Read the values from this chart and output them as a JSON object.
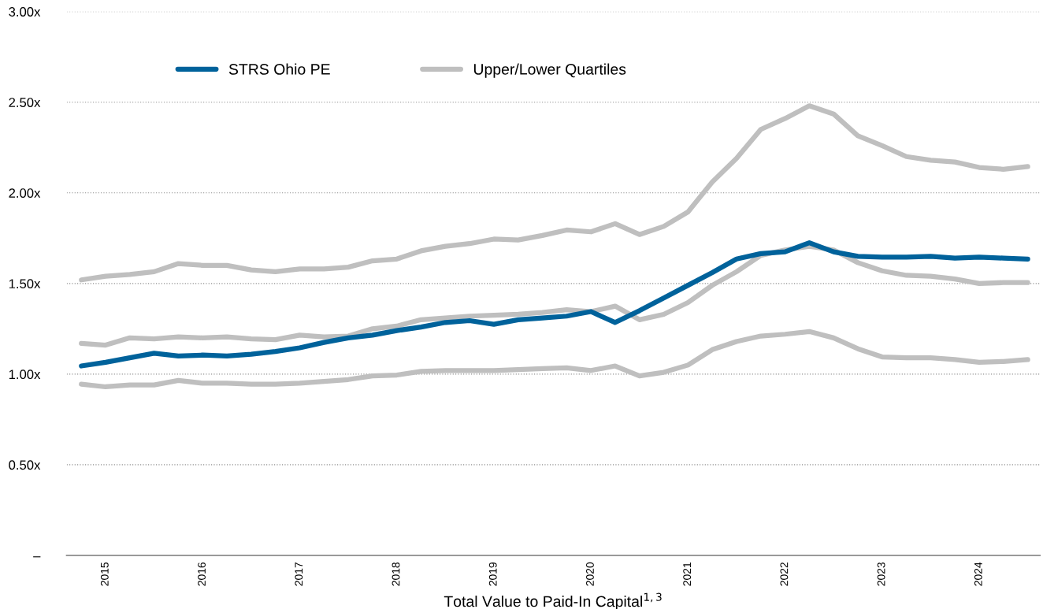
{
  "chart_data": {
    "type": "line",
    "xlabel": "Total Value to Paid-In Capital$^{1,3}$",
    "categories": [
      null,
      "2015",
      null,
      null,
      null,
      "2016",
      null,
      null,
      null,
      "2017",
      null,
      null,
      null,
      "2018",
      null,
      null,
      null,
      "2019",
      null,
      null,
      null,
      "2020",
      null,
      null,
      null,
      "2021",
      null,
      null,
      null,
      "2022",
      null,
      null,
      null,
      "2023",
      null,
      null,
      null,
      "2024",
      null,
      null
    ],
    "series": [
      {
        "name": "Upper/Lower Quartiles",
        "color": "#bfbfbf",
        "values": [
          1.52,
          1.54,
          1.55,
          1.565,
          1.61,
          1.6,
          1.6,
          1.575,
          1.565,
          1.58,
          1.58,
          1.59,
          1.625,
          1.635,
          1.68,
          1.705,
          1.72,
          1.745,
          1.74,
          1.765,
          1.795,
          1.785,
          1.83,
          1.77,
          1.815,
          1.895,
          2.06,
          2.19,
          2.35,
          2.41,
          2.48,
          2.435,
          2.315,
          2.26,
          2.2,
          2.18,
          2.17,
          2.14,
          2.13,
          2.145
        ]
      },
      {
        "color": "#bfbfbf",
        "values": [
          1.17,
          1.16,
          1.2,
          1.195,
          1.205,
          1.2,
          1.205,
          1.195,
          1.19,
          1.215,
          1.205,
          1.21,
          1.25,
          1.265,
          1.3,
          1.31,
          1.32,
          1.325,
          1.33,
          1.34,
          1.355,
          1.345,
          1.375,
          1.3,
          1.33,
          1.395,
          1.49,
          1.565,
          1.655,
          1.685,
          1.705,
          1.685,
          1.615,
          1.57,
          1.545,
          1.54,
          1.525,
          1.5,
          1.505,
          1.505
        ]
      },
      {
        "color": "#bfbfbf",
        "values": [
          0.945,
          0.93,
          0.94,
          0.94,
          0.965,
          0.95,
          0.95,
          0.945,
          0.945,
          0.95,
          0.96,
          0.97,
          0.99,
          0.995,
          1.015,
          1.02,
          1.02,
          1.02,
          1.025,
          1.03,
          1.035,
          1.02,
          1.045,
          0.99,
          1.01,
          1.05,
          1.135,
          1.18,
          1.21,
          1.22,
          1.235,
          1.2,
          1.14,
          1.095,
          1.09,
          1.09,
          1.08,
          1.065,
          1.07,
          1.08
        ]
      },
      {
        "name": "STRS Ohio PE",
        "color": "#00629b",
        "values": [
          1.045,
          1.065,
          1.09,
          1.115,
          1.1,
          1.105,
          1.1,
          1.11,
          1.125,
          1.145,
          1.175,
          1.2,
          1.215,
          1.24,
          1.26,
          1.285,
          1.295,
          1.275,
          1.3,
          1.31,
          1.32,
          1.345,
          1.285,
          1.35,
          1.42,
          1.49,
          1.56,
          1.635,
          1.665,
          1.675,
          1.725,
          1.675,
          1.65,
          1.645,
          1.645,
          1.65,
          1.64,
          1.645,
          1.64,
          1.635
        ]
      }
    ],
    "ylim": [
      0,
      3
    ],
    "yticks": [
      {
        "value": 0,
        "label": "–"
      },
      {
        "value": 0.5,
        "label": "0.50x"
      },
      {
        "value": 1,
        "label": "1.00x"
      },
      {
        "value": 1.5,
        "label": "1.50x"
      },
      {
        "value": 2,
        "label": "2.00x"
      },
      {
        "value": 2.5,
        "label": "2.50x"
      },
      {
        "value": 3,
        "label": "3.00x"
      }
    ],
    "grid": "y",
    "legend": "top left",
    "line_style": "solid"
  }
}
